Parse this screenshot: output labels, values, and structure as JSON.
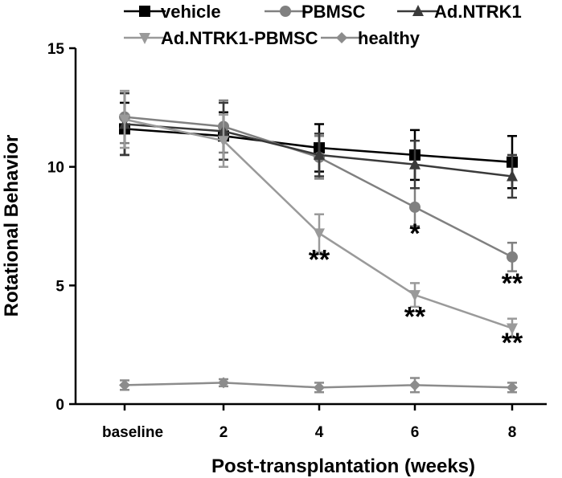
{
  "chart_data": {
    "type": "line",
    "title": "",
    "xlabel": "Post-transplantation (weeks)",
    "ylabel": "Rotational Behavior",
    "categories": [
      "baseline",
      "2",
      "4",
      "6",
      "8"
    ],
    "ylim": [
      0,
      15
    ],
    "yticks": [
      0,
      5,
      10,
      15
    ],
    "grid": false,
    "legend_position": "top",
    "series": [
      {
        "name": "vehicle",
        "color": "#000000",
        "marker": "square",
        "values": [
          11.6,
          11.3,
          10.8,
          10.5,
          10.2
        ],
        "errors": [
          1.1,
          1.0,
          1.0,
          1.05,
          1.1
        ]
      },
      {
        "name": "PBMSC",
        "color": "#808080",
        "marker": "circle",
        "values": [
          12.1,
          11.7,
          10.4,
          8.3,
          6.2
        ],
        "errors": [
          1.1,
          1.1,
          0.9,
          0.8,
          0.6
        ]
      },
      {
        "name": "Ad.NTRK1",
        "color": "#3a3a3a",
        "marker": "triangle-up",
        "values": [
          11.8,
          11.5,
          10.5,
          10.1,
          9.6
        ],
        "errors": [
          1.3,
          1.2,
          0.9,
          1.0,
          0.9
        ]
      },
      {
        "name": "Ad.NTRK1-PBMSC",
        "color": "#9a9a9a",
        "marker": "triangle-down",
        "values": [
          12.0,
          11.1,
          7.2,
          4.6,
          3.2
        ],
        "errors": [
          1.2,
          1.1,
          0.8,
          0.5,
          0.4
        ]
      },
      {
        "name": "healthy",
        "color": "#8c8c8c",
        "marker": "diamond",
        "values": [
          0.8,
          0.9,
          0.7,
          0.8,
          0.7
        ],
        "errors": [
          0.2,
          0.15,
          0.2,
          0.3,
          0.2
        ]
      }
    ],
    "annotations": [
      {
        "text": "**",
        "x": "4",
        "y": 5.7
      },
      {
        "text": "*",
        "x": "6",
        "y": 6.8
      },
      {
        "text": "**",
        "x": "8",
        "y": 4.7
      },
      {
        "text": "**",
        "x": "6",
        "y": 3.3
      },
      {
        "text": "**",
        "x": "8",
        "y": 2.2
      }
    ]
  }
}
